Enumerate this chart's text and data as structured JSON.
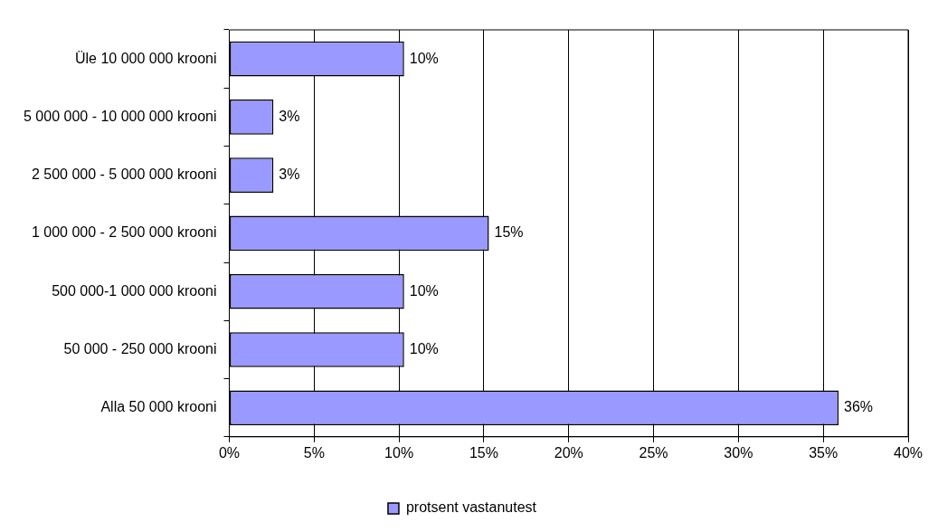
{
  "chart_data": {
    "type": "bar",
    "orientation": "horizontal",
    "categories": [
      "Üle 10 000 000 krooni",
      "5 000 000 - 10 000 000 krooni",
      "2 500 000 - 5 000 000 krooni",
      "1 000 000 - 2 500 000 krooni",
      "500 000-1 000 000 krooni",
      "50 000 - 250 000 krooni",
      "Alla 50 000 krooni"
    ],
    "series": [
      {
        "name": "protsent vastanutest",
        "color": "#9999ff",
        "values": [
          10.3,
          2.6,
          2.6,
          15.3,
          10.3,
          10.3,
          35.9
        ],
        "value_labels": [
          "10%",
          "3%",
          "3%",
          "15%",
          "10%",
          "10%",
          "36%"
        ]
      }
    ],
    "xlim": [
      0,
      40
    ],
    "xticks": [
      {
        "value": 0,
        "label": "0%"
      },
      {
        "value": 5,
        "label": "5%"
      },
      {
        "value": 10,
        "label": "10%"
      },
      {
        "value": 15,
        "label": "15%"
      },
      {
        "value": 20,
        "label": "20%"
      },
      {
        "value": 25,
        "label": "25%"
      },
      {
        "value": 30,
        "label": "30%"
      },
      {
        "value": 35,
        "label": "35%"
      },
      {
        "value": 40,
        "label": "40%"
      }
    ],
    "grid": "x",
    "legend": "bottom"
  }
}
